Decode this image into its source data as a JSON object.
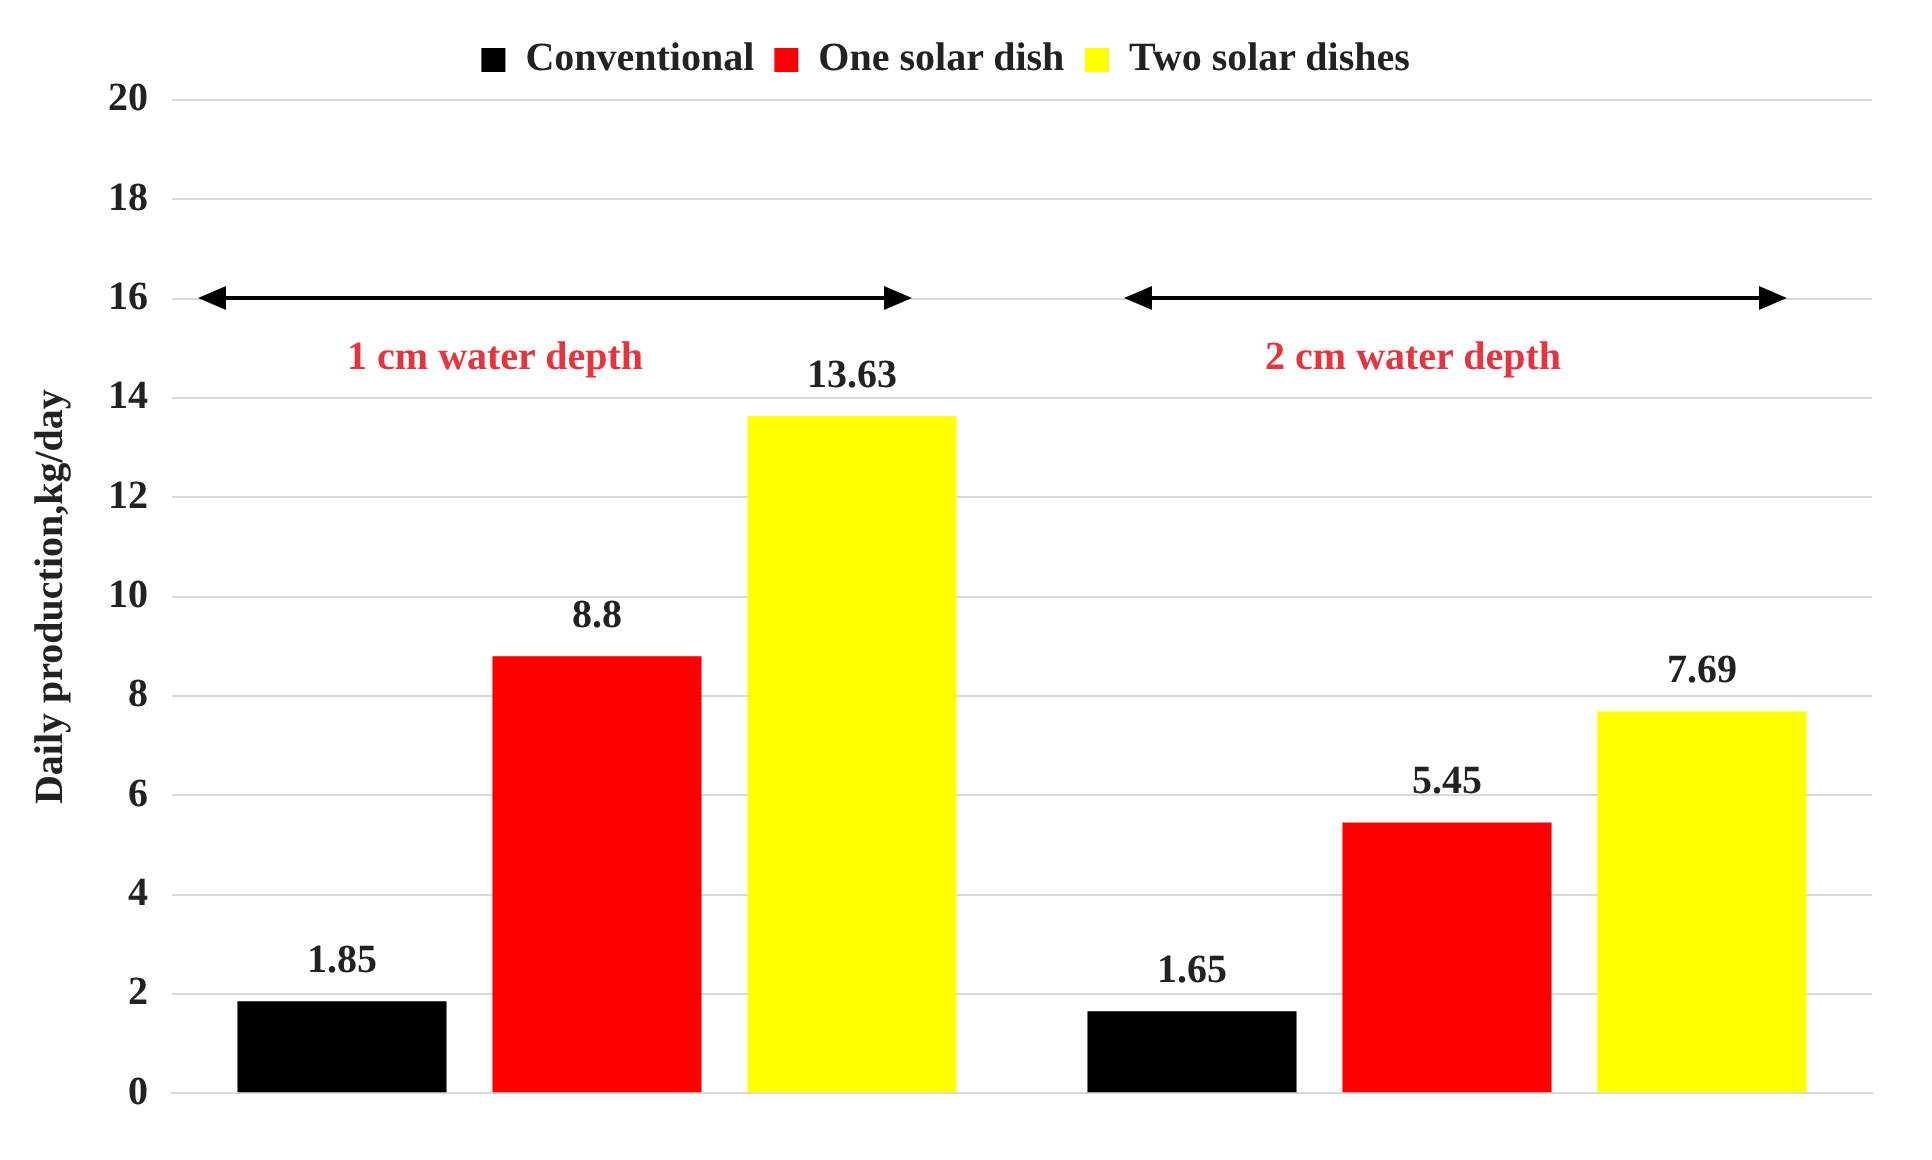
{
  "chart_data": {
    "type": "bar",
    "ylabel": "Daily production,kg/day",
    "categories": [
      null,
      null
    ],
    "series": [
      {
        "name": "Conventional",
        "color": "#000000",
        "values": [
          1.85,
          1.65
        ]
      },
      {
        "name": "One solar dish",
        "color": "#ff0000",
        "values": [
          8.8,
          5.45
        ]
      },
      {
        "name": "Two solar dishes",
        "color": "#ffff00",
        "values": [
          13.63,
          7.69
        ]
      }
    ],
    "ylim": [
      0,
      20
    ],
    "yticks": [
      0,
      2,
      4,
      6,
      8,
      10,
      12,
      14,
      16,
      18,
      20
    ],
    "grid": "y",
    "legend": "top",
    "data_labels": true,
    "annotations": [
      "1 cm water depth",
      "2 cm water depth"
    ]
  }
}
